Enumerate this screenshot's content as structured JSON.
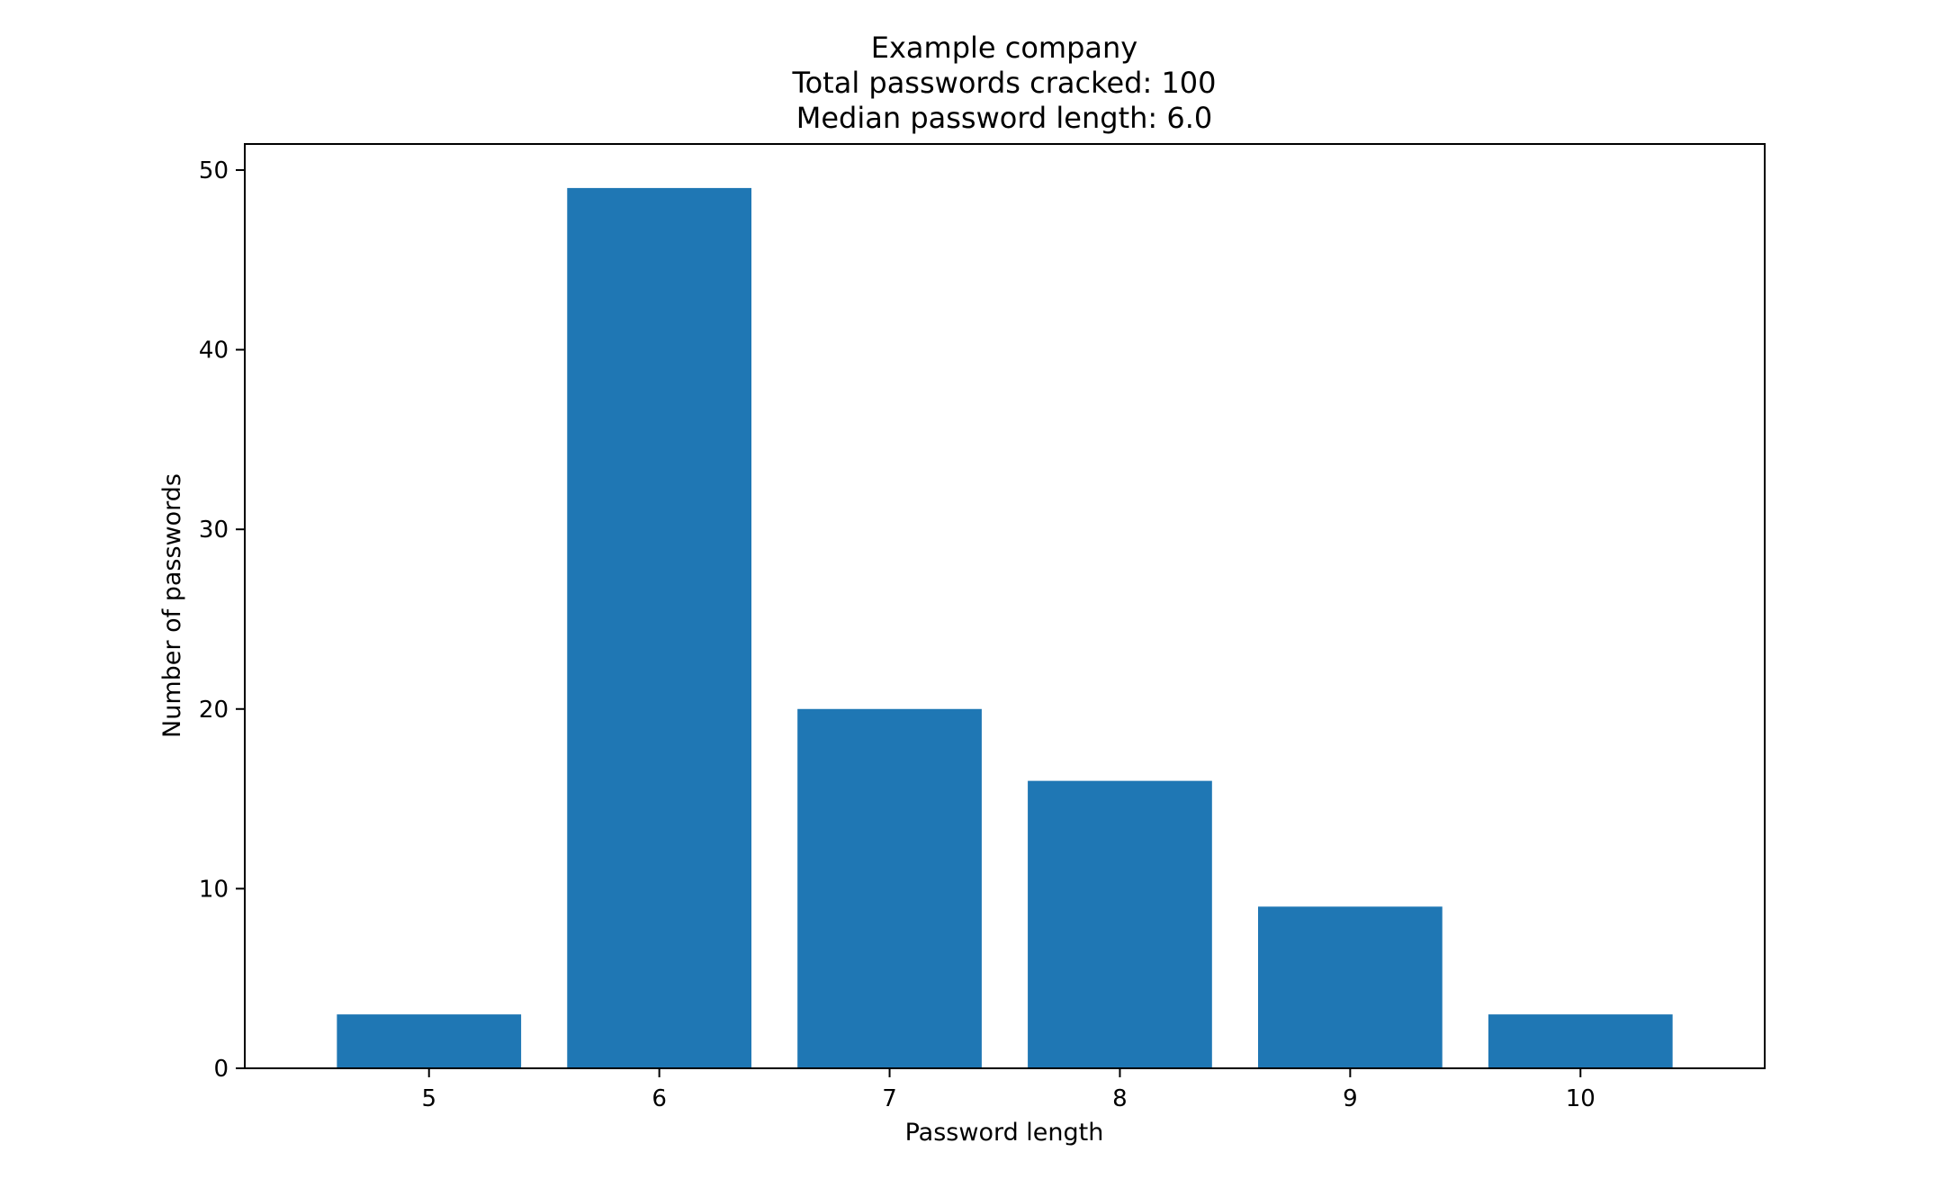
{
  "chart_data": {
    "type": "bar",
    "title_lines": [
      "Example company",
      "Total passwords cracked: 100",
      "Median password length: 6.0"
    ],
    "categories": [
      "5",
      "6",
      "7",
      "8",
      "9",
      "10"
    ],
    "values": [
      3,
      49,
      20,
      16,
      9,
      3
    ],
    "xlabel": "Password length",
    "ylabel": "Number of passwords",
    "ylim": [
      0,
      51.45
    ],
    "yticks": [
      0,
      10,
      20,
      30,
      40,
      50
    ],
    "bar_color": "#1f77b4",
    "grid": false,
    "legend": "none"
  }
}
